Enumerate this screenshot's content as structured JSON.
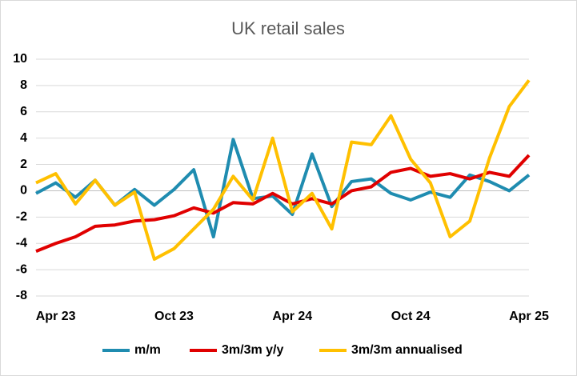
{
  "chart_data": {
    "type": "line",
    "title": "UK retail sales",
    "categories": [
      null,
      "Apr 23",
      null,
      null,
      null,
      null,
      null,
      "Oct 23",
      null,
      null,
      null,
      null,
      null,
      "Apr 24",
      null,
      null,
      null,
      null,
      null,
      "Oct 24",
      null,
      null,
      null,
      null,
      null,
      "Apr 25"
    ],
    "series": [
      {
        "name": "m/m",
        "color": "#1f8cb0",
        "values": [
          -0.2,
          0.6,
          -0.5,
          0.8,
          -1.1,
          0.1,
          -1.1,
          0.1,
          1.6,
          -3.5,
          3.9,
          -0.6,
          -0.4,
          -1.8,
          2.8,
          -1.2,
          0.7,
          0.9,
          -0.2,
          -0.7,
          -0.1,
          -0.5,
          1.2,
          0.7,
          0.0,
          1.2
        ]
      },
      {
        "name": "3m/3m y/y",
        "color": "#e00000",
        "values": [
          -4.6,
          -4.0,
          -3.5,
          -2.7,
          -2.6,
          -2.3,
          -2.2,
          -1.9,
          -1.3,
          -1.7,
          -0.9,
          -1.0,
          -0.2,
          -1.0,
          -0.6,
          -1.0,
          0.0,
          0.3,
          1.4,
          1.7,
          1.1,
          1.3,
          0.9,
          1.4,
          1.1,
          2.7
        ]
      },
      {
        "name": "3m/3m annualised",
        "color": "#ffc000",
        "values": [
          0.6,
          1.3,
          -1.0,
          0.8,
          -1.1,
          -0.1,
          -5.2,
          -4.4,
          -2.9,
          -1.4,
          1.1,
          -0.7,
          4.0,
          -1.6,
          -0.2,
          -2.9,
          3.7,
          3.5,
          5.7,
          2.4,
          0.6,
          -3.5,
          -2.3,
          2.5,
          6.4,
          8.4
        ]
      }
    ],
    "ylim": [
      -8,
      10
    ],
    "yticks": [
      -8,
      -6,
      -4,
      -2,
      0,
      2,
      4,
      6,
      8,
      10
    ],
    "grid": true,
    "legend": "bottom"
  }
}
